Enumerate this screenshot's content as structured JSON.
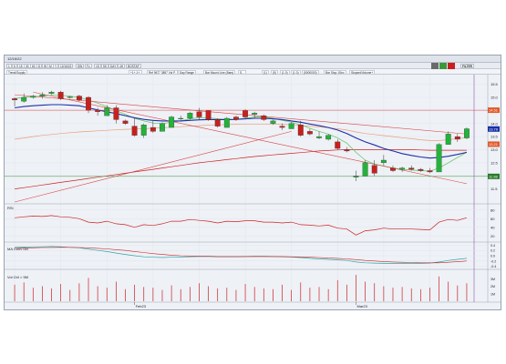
{
  "window": {
    "title": "12/16/22"
  },
  "toolbar": {
    "items": [
      "1",
      "5",
      "15",
      "30",
      "60",
      "D",
      "W",
      "M",
      "Y",
      "20",
      "60",
      "120",
      "240",
      "5Y"
    ],
    "symbol_field": "12/16/22",
    "interval_buttons": [
      "1D",
      "5D",
      "1M",
      "3M",
      "6M",
      "1Y",
      "ETC"
    ],
    "menu": "FILTER",
    "labels": [
      "SIN",
      "Fc",
      "1S",
      "5S",
      "DAY",
      "4H",
      "BOSTAP"
    ]
  },
  "indicator_bar": {
    "items": [
      "Trend/Supply",
      "+1+-1+-",
      "Ref 9677 3897 Vol P.",
      "Day Range",
      "Bar Mount Line (Bars)",
      "S...",
      "(1)",
      "(5)",
      "(1.0)",
      "(1.0)",
      "(5000000)",
      "Bar Stop 1Sec",
      "Stopset/Volume+"
    ]
  },
  "colors": {
    "up_candle": "#22b33a",
    "down_candle": "#c8201c",
    "ma_blue": "#1a2fa8",
    "ma_salmon": "#e6a07a",
    "ma_green": "#5cc35c",
    "ma_red": "#cc2222",
    "trend_line": "#d94040",
    "highlight_label": "#e05a2a",
    "grid": "#dfe4ec"
  },
  "price_axis": {
    "ticks": [
      "15.5",
      "15.0",
      "14.5",
      "14.0",
      "13.5",
      "13.0",
      "12.5",
      "12.0",
      "11.5"
    ],
    "tags": [
      "14.51",
      "13.21",
      "11.98",
      "13.79"
    ]
  },
  "x_axis": {
    "labels": [
      "Feb23",
      "Mar23"
    ]
  },
  "panels": {
    "rsi": {
      "label": "RSI",
      "ticks": [
        "80",
        "60",
        "40",
        "20"
      ]
    },
    "macd": {
      "label": "MA Conv Div",
      "ticks": [
        "0.4",
        "0.2",
        "0.0",
        "-0.2",
        "-0.4"
      ]
    },
    "volume": {
      "label": "Vol Ctrl > 5M",
      "ticks": [
        "3M",
        "2M",
        "1M"
      ]
    }
  },
  "chart_data": {
    "type": "candlestick",
    "ylim": [
      11.0,
      15.8
    ],
    "candles": [
      [
        14.95,
        15.0,
        14.65,
        14.9
      ],
      [
        14.85,
        15.15,
        14.8,
        15.0
      ],
      [
        15.0,
        15.1,
        14.95,
        15.05
      ],
      [
        15.05,
        15.2,
        14.95,
        15.1
      ],
      [
        15.15,
        15.25,
        15.1,
        15.2
      ],
      [
        15.2,
        15.25,
        14.9,
        14.95
      ],
      [
        15.0,
        15.05,
        14.95,
        15.02
      ],
      [
        15.05,
        15.1,
        14.85,
        14.9
      ],
      [
        15.0,
        15.05,
        14.4,
        14.5
      ],
      [
        14.5,
        14.6,
        14.3,
        14.45
      ],
      [
        14.3,
        14.7,
        14.3,
        14.6
      ],
      [
        14.6,
        14.7,
        14.0,
        14.15
      ],
      [
        14.1,
        14.15,
        13.95,
        14.0
      ],
      [
        13.9,
        14.2,
        13.5,
        13.55
      ],
      [
        13.55,
        14.0,
        13.45,
        13.95
      ],
      [
        13.85,
        14.1,
        13.65,
        13.7
      ],
      [
        13.7,
        14.05,
        13.7,
        14.0
      ],
      [
        13.85,
        14.3,
        13.85,
        14.25
      ],
      [
        14.2,
        14.3,
        14.1,
        14.2
      ],
      [
        14.2,
        14.45,
        14.15,
        14.4
      ],
      [
        14.45,
        14.6,
        14.15,
        14.25
      ],
      [
        14.5,
        14.5,
        14.1,
        14.15
      ],
      [
        14.15,
        14.2,
        13.85,
        13.9
      ],
      [
        13.85,
        14.25,
        13.85,
        14.2
      ],
      [
        14.25,
        14.3,
        14.1,
        14.15
      ],
      [
        14.5,
        14.55,
        14.2,
        14.25
      ],
      [
        14.35,
        14.45,
        14.2,
        14.4
      ],
      [
        14.3,
        14.35,
        14.1,
        14.15
      ],
      [
        14.0,
        14.15,
        13.95,
        14.1
      ],
      [
        13.9,
        14.0,
        13.75,
        13.85
      ],
      [
        13.8,
        14.05,
        13.8,
        14.0
      ],
      [
        13.95,
        14.1,
        13.5,
        13.55
      ],
      [
        13.7,
        13.8,
        13.55,
        13.6
      ],
      [
        13.45,
        13.7,
        13.4,
        13.5
      ],
      [
        13.4,
        13.6,
        13.35,
        13.55
      ],
      [
        13.3,
        13.4,
        13.0,
        13.05
      ],
      [
        13.0,
        13.1,
        12.9,
        12.95
      ],
      [
        11.95,
        12.2,
        11.8,
        12.0
      ],
      [
        12.0,
        12.6,
        12.0,
        12.5
      ],
      [
        12.4,
        12.6,
        12.0,
        12.1
      ],
      [
        12.5,
        12.8,
        12.4,
        12.6
      ],
      [
        12.3,
        12.4,
        12.15,
        12.2
      ],
      [
        12.25,
        12.35,
        12.15,
        12.3
      ],
      [
        12.3,
        12.4,
        12.2,
        12.25
      ],
      [
        12.25,
        12.3,
        12.15,
        12.2
      ],
      [
        12.2,
        12.3,
        12.1,
        12.15
      ],
      [
        12.15,
        13.25,
        12.15,
        13.2
      ],
      [
        13.2,
        13.7,
        13.2,
        13.6
      ],
      [
        13.5,
        13.6,
        13.3,
        13.4
      ],
      [
        13.45,
        13.85,
        13.4,
        13.8
      ]
    ],
    "ma_blue": [
      14.6,
      14.65,
      14.68,
      14.7,
      14.72,
      14.72,
      14.7,
      14.68,
      14.6,
      14.52,
      14.45,
      14.38,
      14.3,
      14.22,
      14.16,
      14.12,
      14.1,
      14.1,
      14.1,
      14.12,
      14.14,
      14.15,
      14.15,
      14.15,
      14.16,
      14.18,
      14.2,
      14.2,
      14.18,
      14.15,
      14.1,
      14.05,
      13.98,
      13.92,
      13.85,
      13.75,
      13.62,
      13.45,
      13.3,
      13.18,
      13.05,
      12.95,
      12.85,
      12.78,
      12.72,
      12.68,
      12.7,
      12.75,
      12.82,
      12.9
    ],
    "ma_salmon": [
      13.4,
      13.45,
      13.5,
      13.55,
      13.58,
      13.62,
      13.65,
      13.68,
      13.7,
      13.72,
      13.74,
      13.76,
      13.78,
      13.79,
      13.8,
      13.82,
      13.84,
      13.86,
      13.88,
      13.9,
      13.92,
      13.94,
      13.95,
      13.96,
      13.97,
      13.98,
      13.98,
      13.98,
      13.98,
      13.97,
      13.95,
      13.93,
      13.9,
      13.87,
      13.84,
      13.8,
      13.75,
      13.68,
      13.62,
      13.58,
      13.54,
      13.5,
      13.46,
      13.42,
      13.38,
      13.35,
      13.35,
      13.38,
      13.42,
      13.46
    ],
    "ma_green": [
      14.95,
      15.0,
      15.02,
      15.05,
      15.08,
      15.08,
      15.05,
      15.0,
      14.9,
      14.78,
      14.65,
      14.5,
      14.35,
      14.2,
      14.1,
      14.02,
      14.0,
      14.05,
      14.1,
      14.18,
      14.22,
      14.22,
      14.18,
      14.15,
      14.15,
      14.2,
      14.25,
      14.25,
      14.2,
      14.12,
      14.05,
      13.95,
      13.82,
      13.7,
      13.6,
      13.45,
      13.25,
      12.9,
      12.6,
      12.45,
      12.38,
      12.3,
      12.25,
      12.22,
      12.2,
      12.18,
      12.3,
      12.5,
      12.7,
      12.9
    ],
    "ma_red": [
      11.5,
      11.55,
      11.6,
      11.65,
      11.7,
      11.75,
      11.8,
      11.85,
      11.9,
      11.95,
      12.0,
      12.05,
      12.1,
      12.15,
      12.2,
      12.25,
      12.3,
      12.35,
      12.4,
      12.45,
      12.5,
      12.54,
      12.58,
      12.62,
      12.66,
      12.7,
      12.74,
      12.77,
      12.8,
      12.83,
      12.86,
      12.89,
      12.92,
      12.95,
      12.97,
      12.99,
      13.0,
      13.0,
      13.0,
      13.0,
      13.0,
      13.0,
      13.0,
      13.0,
      12.99,
      12.98,
      12.98,
      12.98,
      12.98,
      12.98
    ],
    "trend_lines": [
      {
        "p1": [
          0,
          15.1
        ],
        "p2": [
          49,
          13.6
        ]
      },
      {
        "p1": [
          2,
          15.2
        ],
        "p2": [
          49,
          11.7
        ]
      },
      {
        "p1": [
          0,
          11.0
        ],
        "p2": [
          30,
          13.7
        ]
      }
    ],
    "rsi": [
      62,
      64,
      66,
      65,
      67,
      64,
      63,
      60,
      52,
      50,
      54,
      48,
      46,
      40,
      46,
      44,
      48,
      54,
      54,
      58,
      56,
      54,
      50,
      54,
      53,
      55,
      55,
      52,
      52,
      50,
      52,
      46,
      45,
      43,
      45,
      38,
      36,
      22,
      32,
      34,
      38,
      36,
      36,
      36,
      35,
      34,
      52,
      58,
      56,
      62
    ],
    "macd": [
      0.32,
      0.33,
      0.34,
      0.34,
      0.35,
      0.34,
      0.32,
      0.3,
      0.25,
      0.2,
      0.16,
      0.1,
      0.05,
      0.0,
      -0.04,
      -0.06,
      -0.07,
      -0.06,
      -0.05,
      -0.04,
      -0.03,
      -0.03,
      -0.04,
      -0.04,
      -0.04,
      -0.03,
      -0.02,
      -0.02,
      -0.03,
      -0.04,
      -0.05,
      -0.07,
      -0.1,
      -0.12,
      -0.14,
      -0.16,
      -0.18,
      -0.24,
      -0.27,
      -0.28,
      -0.29,
      -0.29,
      -0.29,
      -0.29,
      -0.29,
      -0.28,
      -0.24,
      -0.18,
      -0.14,
      -0.1
    ],
    "macd_signal": [
      0.28,
      0.29,
      0.3,
      0.31,
      0.31,
      0.32,
      0.32,
      0.31,
      0.3,
      0.28,
      0.26,
      0.23,
      0.2,
      0.16,
      0.12,
      0.08,
      0.05,
      0.02,
      0.0,
      -0.01,
      -0.02,
      -0.02,
      -0.03,
      -0.03,
      -0.03,
      -0.03,
      -0.03,
      -0.03,
      -0.03,
      -0.03,
      -0.04,
      -0.05,
      -0.06,
      -0.07,
      -0.09,
      -0.1,
      -0.12,
      -0.15,
      -0.18,
      -0.2,
      -0.22,
      -0.24,
      -0.25,
      -0.26,
      -0.27,
      -0.27,
      -0.27,
      -0.25,
      -0.23,
      -0.2
    ],
    "volume": [
      2.2,
      2.5,
      1.8,
      2.0,
      1.7,
      2.3,
      1.5,
      2.4,
      3.1,
      2.0,
      1.8,
      2.6,
      1.6,
      2.2,
      1.9,
      1.8,
      1.5,
      2.1,
      1.6,
      1.9,
      2.4,
      2.0,
      1.7,
      1.8,
      1.5,
      2.3,
      1.9,
      1.7,
      1.6,
      2.2,
      1.5,
      2.5,
      1.8,
      1.9,
      1.6,
      2.8,
      2.2,
      3.5,
      2.6,
      2.4,
      2.0,
      1.8,
      1.9,
      1.7,
      1.6,
      1.8,
      3.3,
      2.6,
      2.1,
      2.4
    ]
  }
}
